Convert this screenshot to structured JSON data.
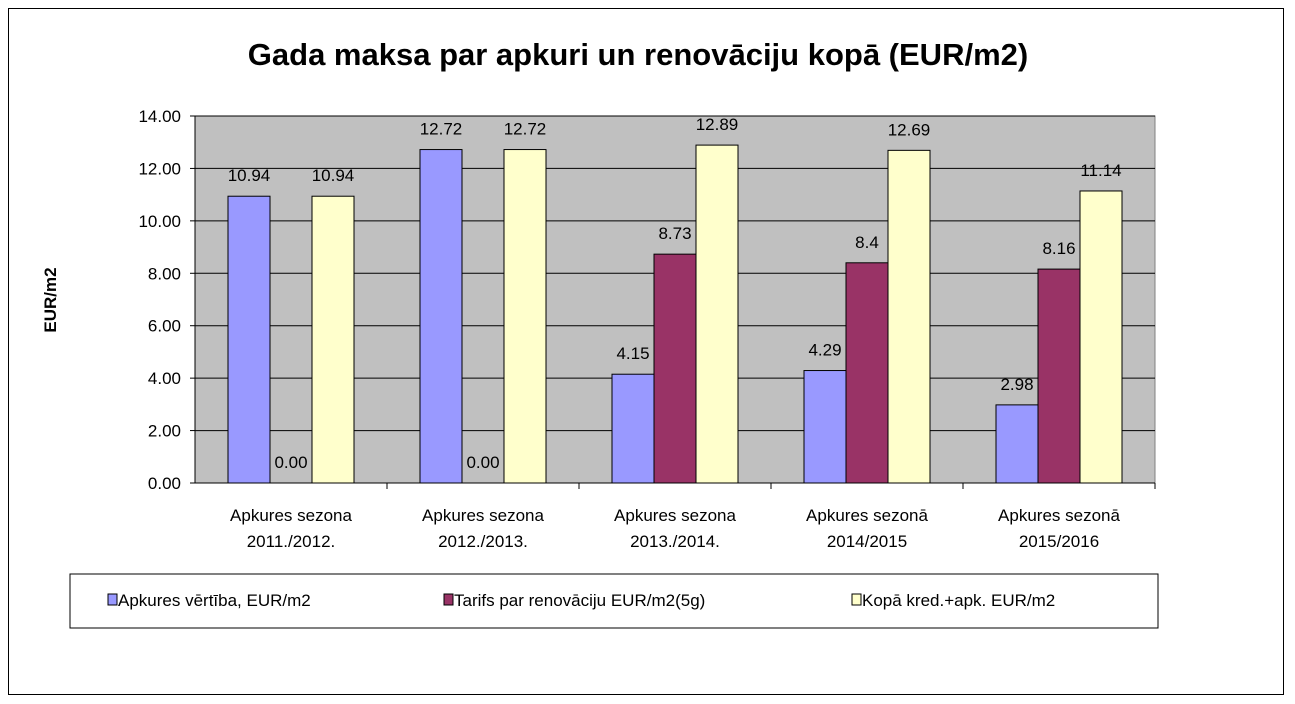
{
  "chart_data": {
    "type": "bar",
    "title": "Gada maksa par apkuri un renovāciju kopā (EUR/m2)",
    "ylabel": "EUR/m2",
    "xlabel": "",
    "ylim": [
      0,
      14
    ],
    "yticks": [
      "0.00",
      "2.00",
      "4.00",
      "6.00",
      "8.00",
      "10.00",
      "12.00",
      "14.00"
    ],
    "grid": true,
    "legend_position": "bottom",
    "categories": [
      [
        "Apkures sezona",
        "2011./2012."
      ],
      [
        "Apkures sezona",
        "2012./2013."
      ],
      [
        "Apkures sezona",
        "2013./2014."
      ],
      [
        "Apkures sezonā",
        "2014/2015"
      ],
      [
        "Apkures sezonā",
        "2015/2016"
      ]
    ],
    "series": [
      {
        "name": "Apkures vērtība, EUR/m2",
        "color": "#9999FF",
        "values": [
          10.94,
          12.72,
          4.15,
          4.29,
          2.98
        ],
        "labels": [
          "10.94",
          "12.72",
          "4.15",
          "4.29",
          "2.98"
        ]
      },
      {
        "name": "Tarifs par  renovāciju EUR/m2(5g)",
        "color": "#993366",
        "values": [
          0,
          0,
          8.73,
          8.4,
          8.16
        ],
        "labels": [
          "0.00",
          "0.00",
          "8.73",
          "8.4",
          "8.16"
        ]
      },
      {
        "name": "Kopā kred.+apk. EUR/m2",
        "color": "#FFFFCC",
        "values": [
          10.94,
          12.72,
          12.89,
          12.69,
          11.14
        ],
        "labels": [
          "10.94",
          "12.72",
          "12.89",
          "12.69",
          "11.14"
        ]
      }
    ]
  }
}
